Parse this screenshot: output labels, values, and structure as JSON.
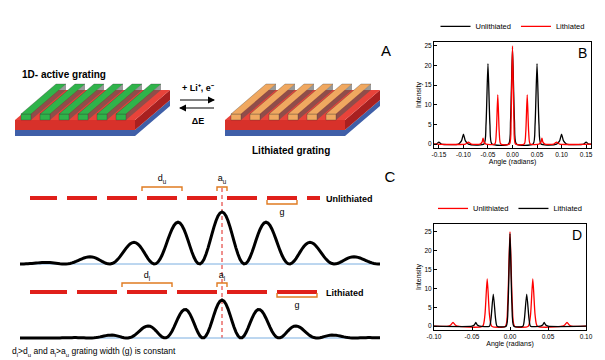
{
  "panels": {
    "A": {
      "letter": "A",
      "left_label": "1D- active grating",
      "right_label": "Lithiated grating",
      "forward": "+ Li⁺, e⁻",
      "reverse": "ΔE"
    },
    "C": {
      "letter": "C",
      "rows": [
        {
          "label": "Unlithiated",
          "d": [
            {
              "text": "d"
            },
            {
              "sub": "u"
            }
          ],
          "a": [
            {
              "text": "a"
            },
            {
              "sub": "u"
            }
          ],
          "g": [
            {
              "text": "g"
            }
          ]
        },
        {
          "label": "Lithiated",
          "d": [
            {
              "text": "d"
            },
            {
              "sub": "l"
            }
          ],
          "a": [
            {
              "text": "a"
            },
            {
              "sub": "l"
            }
          ],
          "g": [
            {
              "text": "g"
            }
          ]
        }
      ],
      "caption": [
        {
          "text": "d"
        },
        {
          "sub": "l"
        },
        {
          "text": ">d"
        },
        {
          "sub": "u"
        },
        {
          "text": "  and a"
        },
        {
          "sub": "l"
        },
        {
          "text": ">a"
        },
        {
          "sub": "u"
        },
        {
          "text": " grating width (g) is constant"
        }
      ]
    }
  },
  "chart_data": [
    {
      "panel": "B",
      "type": "line",
      "x_label": "Angle (radians)",
      "y_label": "Intensity",
      "xlim": [
        -0.16,
        0.16
      ],
      "xticks": [
        -0.15,
        {
          "value": -0.1,
          "label": "-0.10"
        },
        -0.05,
        {
          "value": 0,
          "label": "0.00"
        },
        0.05,
        {
          "value": 0.1,
          "label": "0.10"
        },
        0.15
      ],
      "ylim": [
        -1,
        26
      ],
      "yticks": [
        0,
        5,
        10,
        15,
        20,
        25
      ],
      "grid": false,
      "legend": "top",
      "series": [
        {
          "name": "Unlithiated",
          "color": "#000000",
          "x": [
            -0.16,
            -0.155,
            -0.15,
            -0.145,
            -0.11,
            -0.104,
            -0.1,
            -0.096,
            -0.09,
            -0.058,
            -0.054,
            -0.05,
            -0.046,
            -0.042,
            -0.008,
            -0.004,
            0,
            0.004,
            0.008,
            0.042,
            0.046,
            0.05,
            0.054,
            0.058,
            0.09,
            0.096,
            0.1,
            0.104,
            0.11,
            0.145,
            0.15,
            0.155,
            0.16
          ],
          "values": [
            0,
            0,
            0.5,
            0,
            0,
            0.8,
            2.5,
            0.8,
            0,
            0,
            5,
            20.5,
            5,
            0,
            0,
            6,
            24.5,
            6,
            0,
            0,
            5,
            20.5,
            5,
            0,
            0,
            0.8,
            2.5,
            0.8,
            0,
            0,
            0.5,
            0,
            0
          ]
        },
        {
          "name": "Lithiated",
          "color": "#ff0000",
          "x": [
            -0.16,
            -0.096,
            -0.09,
            -0.084,
            -0.066,
            -0.062,
            -0.06,
            -0.058,
            -0.054,
            -0.036,
            -0.033,
            -0.03,
            -0.027,
            -0.024,
            -0.006,
            -0.003,
            0,
            0.003,
            0.006,
            0.024,
            0.027,
            0.03,
            0.033,
            0.036,
            0.054,
            0.058,
            0.06,
            0.062,
            0.066,
            0.084,
            0.09,
            0.096,
            0.16
          ],
          "values": [
            0,
            0,
            0.5,
            0,
            0,
            0.5,
            1.5,
            0.5,
            0,
            0,
            3,
            12.5,
            3,
            0,
            0,
            6,
            25,
            6,
            0,
            0,
            3,
            12.5,
            3,
            0,
            0,
            0.5,
            1.5,
            0.5,
            0,
            0,
            0.5,
            0,
            0
          ]
        }
      ]
    },
    {
      "panel": "D",
      "type": "line",
      "x_label": "Angle (radians)",
      "y_label": "Intensity",
      "xlim": [
        -0.1,
        0.1
      ],
      "xticks": [
        {
          "value": -0.1,
          "label": "-0.10"
        },
        -0.05,
        {
          "value": 0,
          "label": "0.00"
        },
        0.05,
        {
          "value": 0.1,
          "label": "0.10"
        }
      ],
      "ylim": [
        -1,
        27
      ],
      "yticks": [
        0,
        5,
        10,
        15,
        20,
        25
      ],
      "grid": false,
      "legend": "top",
      "series": [
        {
          "name": "Unlithiated",
          "color": "#ff0000",
          "x": [
            -0.1,
            -0.081,
            -0.078,
            -0.075,
            -0.072,
            -0.069,
            -0.036,
            -0.033,
            -0.03,
            -0.027,
            -0.024,
            -0.006,
            -0.003,
            0,
            0.003,
            0.006,
            0.024,
            0.027,
            0.03,
            0.033,
            0.036,
            0.069,
            0.072,
            0.075,
            0.078,
            0.081,
            0.1
          ],
          "values": [
            0,
            0,
            0.3,
            1,
            0.3,
            0,
            0,
            3,
            12.5,
            3,
            0,
            0,
            6,
            25,
            6,
            0,
            0,
            3,
            12.5,
            3,
            0,
            0,
            0.3,
            1,
            0.3,
            0,
            0
          ]
        },
        {
          "name": "Lithiated",
          "color": "#000000",
          "x": [
            -0.1,
            -0.05,
            -0.047,
            -0.045,
            -0.043,
            -0.04,
            -0.027,
            -0.025,
            -0.022,
            -0.019,
            -0.017,
            -0.005,
            -0.0025,
            0,
            0.0025,
            0.005,
            0.017,
            0.019,
            0.022,
            0.025,
            0.027,
            0.04,
            0.043,
            0.045,
            0.047,
            0.05,
            0.1
          ],
          "values": [
            0,
            0,
            0.3,
            1,
            0.3,
            0,
            0,
            2,
            8.5,
            2,
            0,
            0,
            6,
            24.5,
            6,
            0,
            0,
            2,
            8.5,
            2,
            0,
            0,
            0.3,
            1,
            0.3,
            0,
            0
          ]
        }
      ]
    }
  ]
}
